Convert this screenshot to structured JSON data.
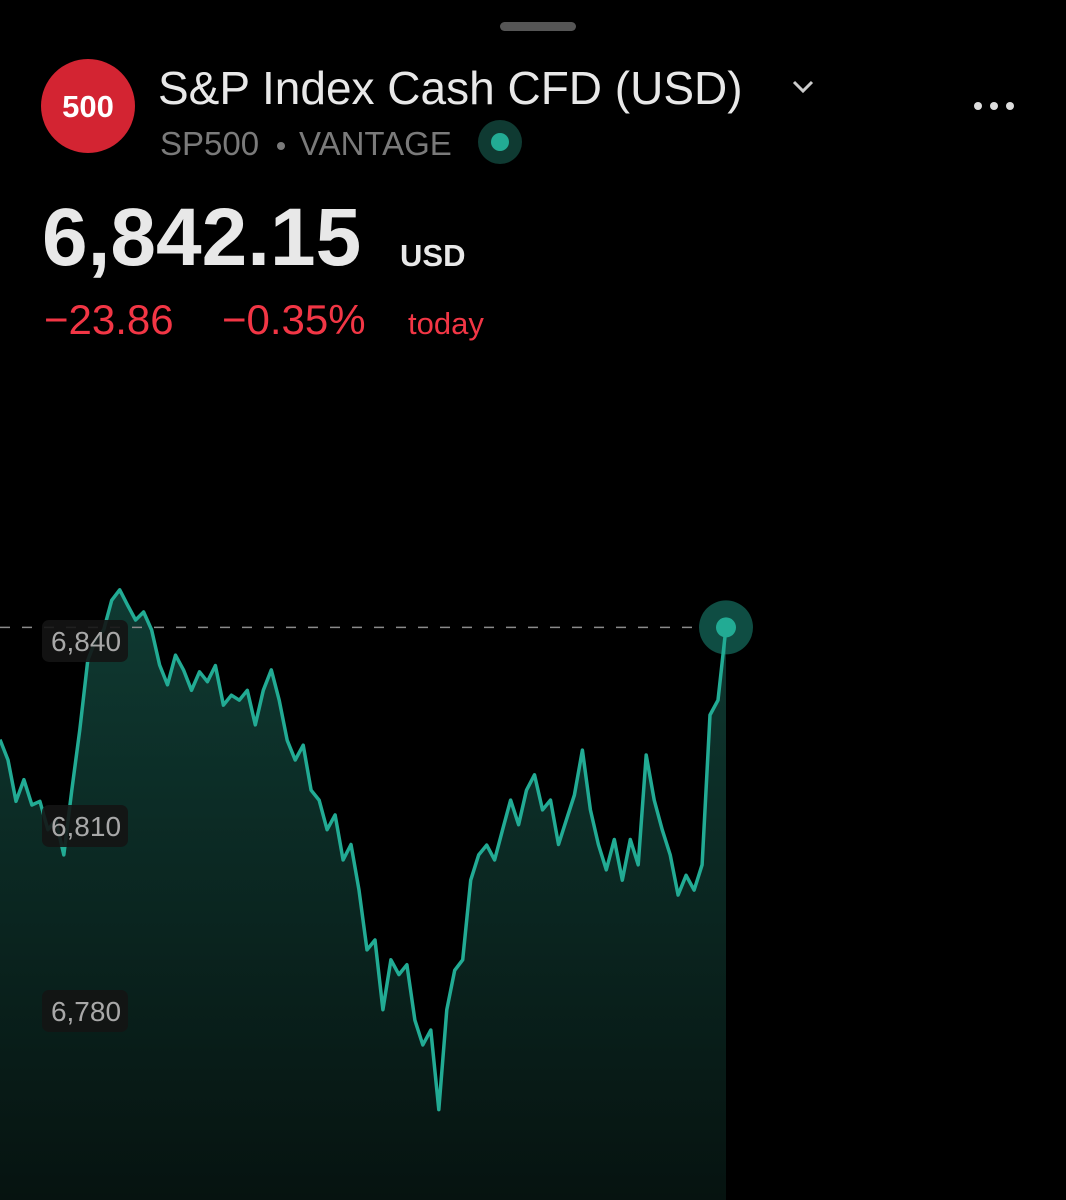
{
  "header": {
    "logo": "500",
    "title": "S&P Index Cash CFD (USD)",
    "symbol": "SP500",
    "exchange": "VANTAGE",
    "price": "6,842.15",
    "currency": "USD",
    "change": "−23.86",
    "change_percent": "−0.35%",
    "period": "today"
  },
  "chart_data": {
    "type": "area",
    "color": "#22ab94",
    "values": [
      6824,
      6820.7,
      6814,
      6817.5,
      6813.4,
      6814,
      6809.4,
      6811,
      6805.3,
      6815.8,
      6825.6,
      6836.9,
      6840.2,
      6841.8,
      6846.6,
      6848.3,
      6845.8,
      6843.4,
      6844.7,
      6841.8,
      6836.1,
      6832.9,
      6837.7,
      6835.3,
      6832,
      6835,
      6833.4,
      6836,
      6829.6,
      6831.2,
      6830.4,
      6832,
      6826.4,
      6832,
      6835.3,
      6830.4,
      6823.9,
      6820.7,
      6823.1,
      6815.8,
      6814.2,
      6809.4,
      6811.8,
      6804.5,
      6807,
      6799.6,
      6789.9,
      6791.5,
      6780.2,
      6788.3,
      6785.9,
      6787.5,
      6778.5,
      6774.5,
      6776.9,
      6764,
      6780.2,
      6786.6,
      6788.3,
      6801.2,
      6805.3,
      6806.9,
      6804.5,
      6809.4,
      6814.2,
      6810.2,
      6815.8,
      6818.3,
      6812.6,
      6814.2,
      6807,
      6811,
      6815,
      6822.3,
      6812.6,
      6807,
      6802.9,
      6807.8,
      6801.2,
      6807.8,
      6803.7,
      6821.5,
      6814.2,
      6809.4,
      6805.3,
      6798.8,
      6802,
      6799.6,
      6803.7,
      6828,
      6830.4,
      6842.2
    ],
    "ylim": [
      6760,
      6850
    ],
    "yticks": [
      {
        "value": 6840,
        "label": "6,840"
      },
      {
        "value": 6810,
        "label": "6,810"
      },
      {
        "value": 6780,
        "label": "6,780"
      }
    ]
  }
}
